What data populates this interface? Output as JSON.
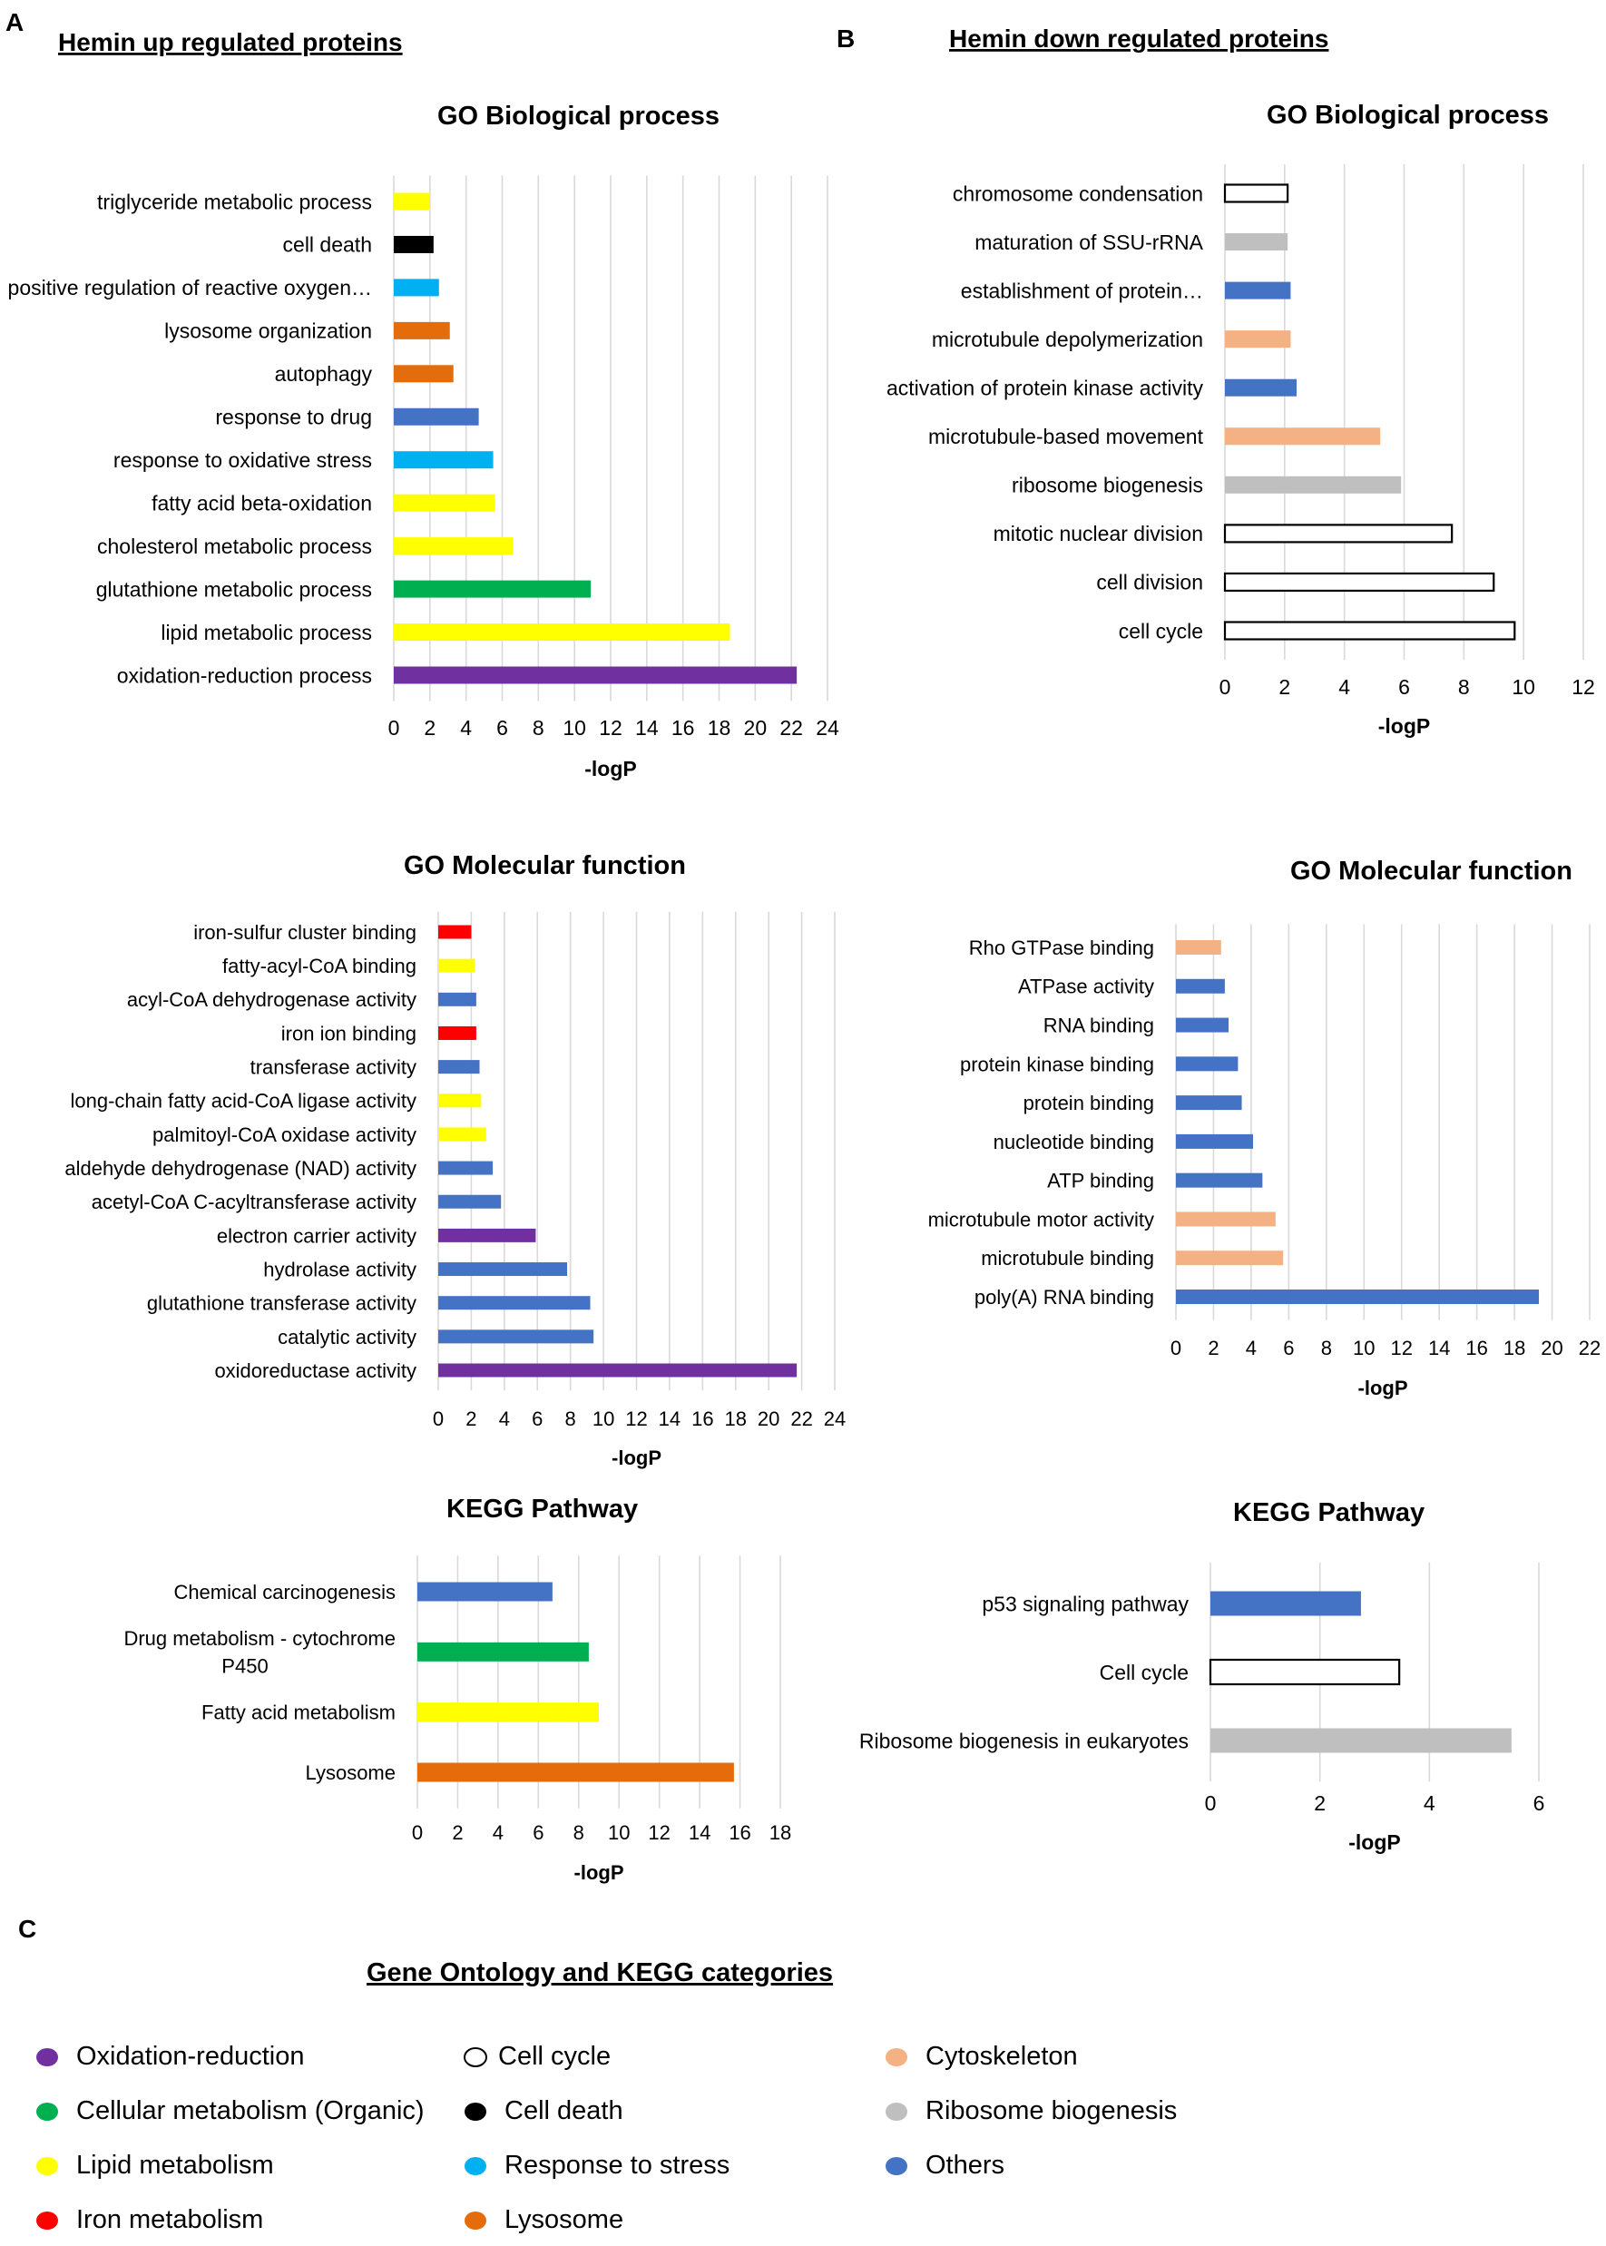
{
  "panels": [
    {
      "letter": "A",
      "heading": "Hemin up regulated proteins"
    },
    {
      "letter": "B",
      "heading": "Hemin down regulated proteins"
    },
    {
      "letter": "C",
      "heading": "Gene Ontology and KEGG categories"
    }
  ],
  "categories": {
    "ox": {
      "label": "Oxidation-reduction",
      "color": "#7030a0"
    },
    "cell": {
      "label": "Cellular metabolism (Organic)",
      "color": "#00b050"
    },
    "lipid": {
      "label": "Lipid metabolism",
      "color": "#ffff00"
    },
    "iron": {
      "label": "Iron metabolism",
      "color": "#ff0000"
    },
    "cycle": {
      "label": "Cell cycle",
      "color": "#ffffff"
    },
    "death": {
      "label": "Cell death",
      "color": "#000000"
    },
    "stress": {
      "label": "Response to stress",
      "color": "#00b0f0"
    },
    "lyso": {
      "label": "Lysosome",
      "color": "#e46c0a"
    },
    "cyto": {
      "label": "Cytoskeleton",
      "color": "#f4b183"
    },
    "ribo": {
      "label": "Ribosome biogenesis",
      "color": "#bfbfbf"
    },
    "other": {
      "label": "Others",
      "color": "#4472c4"
    }
  },
  "legend_columns": [
    [
      "ox",
      "cell",
      "lipid",
      "iron"
    ],
    [
      "cycle",
      "death",
      "stress",
      "lyso"
    ],
    [
      "cyto",
      "ribo",
      "other"
    ]
  ],
  "chart_data": [
    {
      "id": "up_bp",
      "type": "bar",
      "orientation": "horizontal",
      "title": "GO Biological process",
      "xlabel": "-logP",
      "xlim": [
        0,
        24
      ],
      "xstep": 2,
      "grid": true,
      "categories": [
        "triglyceride metabolic process",
        "cell death",
        "positive regulation of reactive oxygen…",
        "lysosome organization",
        "autophagy",
        "response to drug",
        "response to oxidative stress",
        "fatty acid beta-oxidation",
        "cholesterol metabolic process",
        "glutathione metabolic process",
        "lipid metabolic process",
        "oxidation-reduction process"
      ],
      "values": [
        2.0,
        2.2,
        2.5,
        3.1,
        3.3,
        4.7,
        5.5,
        5.6,
        6.6,
        10.9,
        18.6,
        22.3
      ],
      "category_group": [
        "lipid",
        "death",
        "stress",
        "lyso",
        "lyso",
        "other",
        "stress",
        "lipid",
        "lipid",
        "cell",
        "lipid",
        "ox"
      ]
    },
    {
      "id": "down_bp",
      "type": "bar",
      "orientation": "horizontal",
      "title": "GO Biological process",
      "xlabel": "-logP",
      "xlim": [
        0,
        12
      ],
      "xstep": 2,
      "grid": true,
      "categories": [
        "chromosome condensation",
        "maturation of SSU-rRNA",
        "establishment of protein…",
        "microtubule depolymerization",
        "activation of protein kinase activity",
        "microtubule-based movement",
        "ribosome biogenesis",
        "mitotic nuclear division",
        "cell division",
        "cell cycle"
      ],
      "values": [
        2.1,
        2.1,
        2.2,
        2.2,
        2.4,
        5.2,
        5.9,
        7.6,
        9.0,
        9.7
      ],
      "category_group": [
        "cycle",
        "ribo",
        "other",
        "cyto",
        "other",
        "cyto",
        "ribo",
        "cycle",
        "cycle",
        "cycle"
      ]
    },
    {
      "id": "up_mf",
      "type": "bar",
      "orientation": "horizontal",
      "title": "GO Molecular function",
      "xlabel": "-logP",
      "xlim": [
        0,
        24
      ],
      "xstep": 2,
      "grid": true,
      "categories": [
        "iron-sulfur cluster binding",
        "fatty-acyl-CoA binding",
        "acyl-CoA dehydrogenase activity",
        "iron ion binding",
        "transferase activity",
        "long-chain fatty acid-CoA ligase activity",
        "palmitoyl-CoA oxidase activity",
        "aldehyde dehydrogenase (NAD) activity",
        "acetyl-CoA C-acyltransferase activity",
        "electron carrier activity",
        "hydrolase activity",
        "glutathione transferase activity",
        "catalytic activity",
        "oxidoreductase activity"
      ],
      "values": [
        2.0,
        2.2,
        2.3,
        2.3,
        2.5,
        2.6,
        2.9,
        3.3,
        3.8,
        5.9,
        7.8,
        9.2,
        9.4,
        21.7
      ],
      "category_group": [
        "iron",
        "lipid",
        "other",
        "iron",
        "other",
        "lipid",
        "lipid",
        "other",
        "other",
        "ox",
        "other",
        "other",
        "other",
        "ox"
      ]
    },
    {
      "id": "down_mf",
      "type": "bar",
      "orientation": "horizontal",
      "title": "GO Molecular function",
      "xlabel": "-logP",
      "xlim": [
        0,
        22
      ],
      "xstep": 2,
      "grid": true,
      "categories": [
        "Rho GTPase binding",
        "ATPase activity",
        "RNA binding",
        "protein kinase binding",
        "protein binding",
        "nucleotide binding",
        "ATP binding",
        "microtubule motor activity",
        "microtubule binding",
        "poly(A) RNA binding"
      ],
      "values": [
        2.4,
        2.6,
        2.8,
        3.3,
        3.5,
        4.1,
        4.6,
        5.3,
        5.7,
        19.3
      ],
      "category_group": [
        "cyto",
        "other",
        "other",
        "other",
        "other",
        "other",
        "other",
        "cyto",
        "cyto",
        "other"
      ]
    },
    {
      "id": "up_kegg",
      "type": "bar",
      "orientation": "horizontal",
      "title": "KEGG Pathway",
      "xlabel": "-logP",
      "xlim": [
        0,
        18
      ],
      "xstep": 2,
      "grid": true,
      "categories": [
        [
          "Chemical carcinogenesis"
        ],
        [
          "Drug metabolism - cytochrome",
          "P450"
        ],
        [
          "Fatty acid metabolism"
        ],
        [
          "Lysosome"
        ]
      ],
      "values": [
        6.7,
        8.5,
        9.0,
        15.7
      ],
      "category_group": [
        "other",
        "cell",
        "lipid",
        "lyso"
      ]
    },
    {
      "id": "down_kegg",
      "type": "bar",
      "orientation": "horizontal",
      "title": "KEGG Pathway",
      "xlabel": "-logP",
      "xlim": [
        0,
        6
      ],
      "xstep": 2,
      "grid": true,
      "categories": [
        "p53 signaling pathway",
        "Cell cycle",
        "Ribosome biogenesis in eukaryotes"
      ],
      "values": [
        2.75,
        3.45,
        5.5
      ],
      "category_group": [
        "other",
        "cycle",
        "ribo"
      ]
    }
  ]
}
